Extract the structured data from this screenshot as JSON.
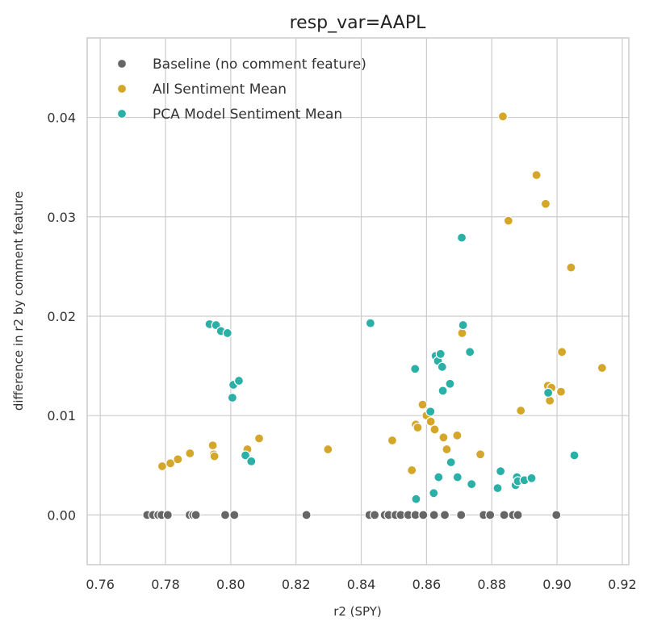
{
  "chart_data": {
    "type": "scatter",
    "title": "resp_var=AAPL",
    "xlabel": "r2 (SPY)",
    "ylabel": "difference in r2 by comment feature",
    "xlim": [
      0.756,
      0.922
    ],
    "ylim": [
      -0.005,
      0.048
    ],
    "xticks": [
      0.76,
      0.78,
      0.8,
      0.82,
      0.84,
      0.86,
      0.88,
      0.9,
      0.92
    ],
    "xtick_labels": [
      "0.76",
      "0.78",
      "0.80",
      "0.82",
      "0.84",
      "0.86",
      "0.88",
      "0.90",
      "0.92"
    ],
    "yticks": [
      0.0,
      0.01,
      0.02,
      0.03,
      0.04
    ],
    "ytick_labels": [
      "0.00",
      "0.01",
      "0.02",
      "0.03",
      "0.04"
    ],
    "grid": true,
    "legend_position": "top-left",
    "series": [
      {
        "name": "Baseline (no comment feature)",
        "color": "#666666",
        "x": [
          0.7744,
          0.7762,
          0.7778,
          0.7788,
          0.7807,
          0.7874,
          0.7885,
          0.7893,
          0.7983,
          0.8011,
          0.8232,
          0.8425,
          0.8441,
          0.8472,
          0.8484,
          0.8505,
          0.8521,
          0.8544,
          0.8566,
          0.859,
          0.8623,
          0.8656,
          0.8706,
          0.8775,
          0.8795,
          0.8838,
          0.8865,
          0.888,
          0.8998
        ],
        "y": [
          0.0,
          0.0,
          0.0,
          0.0,
          0.0,
          0.0,
          0.0,
          0.0,
          0.0,
          0.0,
          0.0,
          0.0,
          0.0,
          0.0,
          0.0,
          0.0,
          0.0,
          0.0,
          0.0,
          0.0,
          0.0,
          0.0,
          0.0,
          0.0,
          0.0,
          0.0,
          0.0,
          0.0,
          0.0
        ]
      },
      {
        "name": "All Sentiment Mean",
        "color": "#d4a62a",
        "x": [
          0.779,
          0.7815,
          0.7838,
          0.7875,
          0.7945,
          0.7948,
          0.795,
          0.8051,
          0.8087,
          0.8298,
          0.8495,
          0.8555,
          0.8567,
          0.8573,
          0.8588,
          0.86,
          0.8613,
          0.8625,
          0.8652,
          0.8662,
          0.8694,
          0.8709,
          0.8765,
          0.8834,
          0.8851,
          0.8889,
          0.8937,
          0.8965,
          0.8972,
          0.8978,
          0.8983,
          0.9012,
          0.9015,
          0.9043,
          0.9138
        ],
        "y": [
          0.0049,
          0.0052,
          0.0056,
          0.0062,
          0.007,
          0.0061,
          0.0059,
          0.0066,
          0.0077,
          0.0066,
          0.0075,
          0.0045,
          0.0091,
          0.0088,
          0.0111,
          0.01,
          0.0094,
          0.0086,
          0.0078,
          0.0066,
          0.008,
          0.0183,
          0.0061,
          0.0401,
          0.0296,
          0.0105,
          0.0342,
          0.0313,
          0.013,
          0.0115,
          0.0128,
          0.0124,
          0.0164,
          0.0249,
          0.0148
        ]
      },
      {
        "name": "PCA Model Sentiment Mean",
        "color": "#2ab0a6",
        "x": [
          0.7935,
          0.7955,
          0.797,
          0.799,
          0.8005,
          0.8008,
          0.8025,
          0.8045,
          0.8063,
          0.8428,
          0.8565,
          0.8568,
          0.8612,
          0.8622,
          0.8628,
          0.8635,
          0.8637,
          0.8643,
          0.8648,
          0.865,
          0.8672,
          0.8675,
          0.8695,
          0.8708,
          0.8712,
          0.8733,
          0.8738,
          0.8818,
          0.8827,
          0.8873,
          0.8877,
          0.888,
          0.89,
          0.8922,
          0.8973,
          0.9053
        ],
        "y": [
          0.0192,
          0.0191,
          0.0185,
          0.0183,
          0.0118,
          0.0131,
          0.0135,
          0.006,
          0.0054,
          0.0193,
          0.0147,
          0.0016,
          0.0104,
          0.0022,
          0.016,
          0.0155,
          0.0038,
          0.0162,
          0.0149,
          0.0125,
          0.0132,
          0.0053,
          0.0038,
          0.0279,
          0.0191,
          0.0164,
          0.0031,
          0.0027,
          0.0044,
          0.003,
          0.0038,
          0.0034,
          0.0035,
          0.0037,
          0.0123,
          0.006
        ]
      }
    ]
  }
}
